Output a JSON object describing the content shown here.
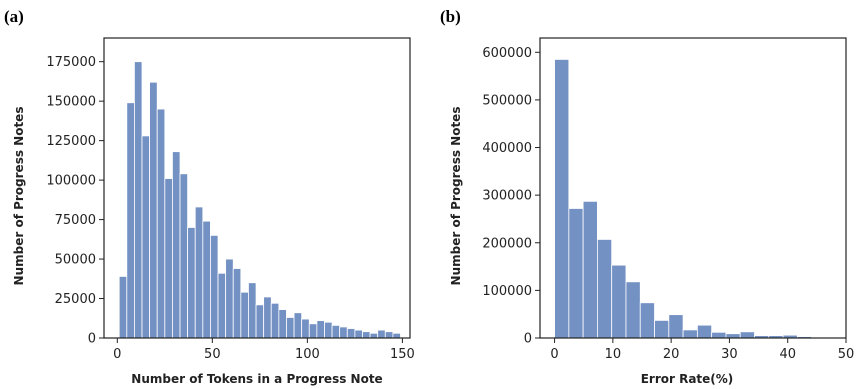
{
  "chart_data": [
    {
      "type": "bar",
      "panel_label": "(a)",
      "title": "",
      "xlabel": "Number of Tokens in a Progress Note",
      "ylabel": "Number of Progress Notes",
      "xlim": [
        -7,
        154
      ],
      "ylim": [
        0,
        190000
      ],
      "xticks": [
        0,
        50,
        100,
        150
      ],
      "yticks": [
        0,
        25000,
        50000,
        75000,
        100000,
        125000,
        150000,
        175000
      ],
      "bin_width": 4,
      "bin_starts": [
        1,
        5,
        9,
        13,
        17,
        21,
        25,
        29,
        33,
        37,
        41,
        45,
        49,
        53,
        57,
        61,
        65,
        69,
        73,
        77,
        81,
        85,
        89,
        93,
        97,
        101,
        105,
        109,
        113,
        117,
        121,
        125,
        129,
        133,
        137,
        141,
        145
      ],
      "values": [
        39000,
        149000,
        175000,
        128000,
        162000,
        145000,
        101000,
        118000,
        104000,
        70000,
        83000,
        74000,
        65000,
        41000,
        50000,
        44000,
        29000,
        35000,
        21000,
        26000,
        22000,
        18000,
        13000,
        16000,
        12000,
        9000,
        11000,
        10000,
        8000,
        7000,
        6000,
        5000,
        4000,
        3000,
        5000,
        4000,
        3000
      ],
      "grid": false,
      "colors": {
        "bar": "#7491c4",
        "edge": "#ffffff"
      }
    },
    {
      "type": "bar",
      "panel_label": "(b)",
      "title": "",
      "xlabel": "Error Rate(%)",
      "ylabel": "Number of Progress Notes",
      "xlim": [
        -2.5,
        50
      ],
      "ylim": [
        0,
        630000
      ],
      "xticks": [
        0,
        10,
        20,
        30,
        40,
        50
      ],
      "yticks": [
        0,
        100000,
        200000,
        300000,
        400000,
        500000,
        600000
      ],
      "bin_width": 2.45,
      "bin_starts": [
        0,
        2.45,
        4.9,
        7.35,
        9.8,
        12.25,
        14.7,
        17.15,
        19.6,
        22.05,
        24.5,
        26.95,
        29.4,
        31.85,
        34.3,
        36.75,
        39.2,
        41.65,
        44.1,
        46.55
      ],
      "values": [
        585000,
        272000,
        287000,
        207000,
        153000,
        118000,
        74000,
        37000,
        49000,
        17000,
        27000,
        12000,
        9000,
        13000,
        5000,
        5000,
        6000,
        3000,
        1500,
        500
      ],
      "grid": false,
      "colors": {
        "bar": "#7491c4",
        "edge": "#ffffff"
      }
    }
  ]
}
